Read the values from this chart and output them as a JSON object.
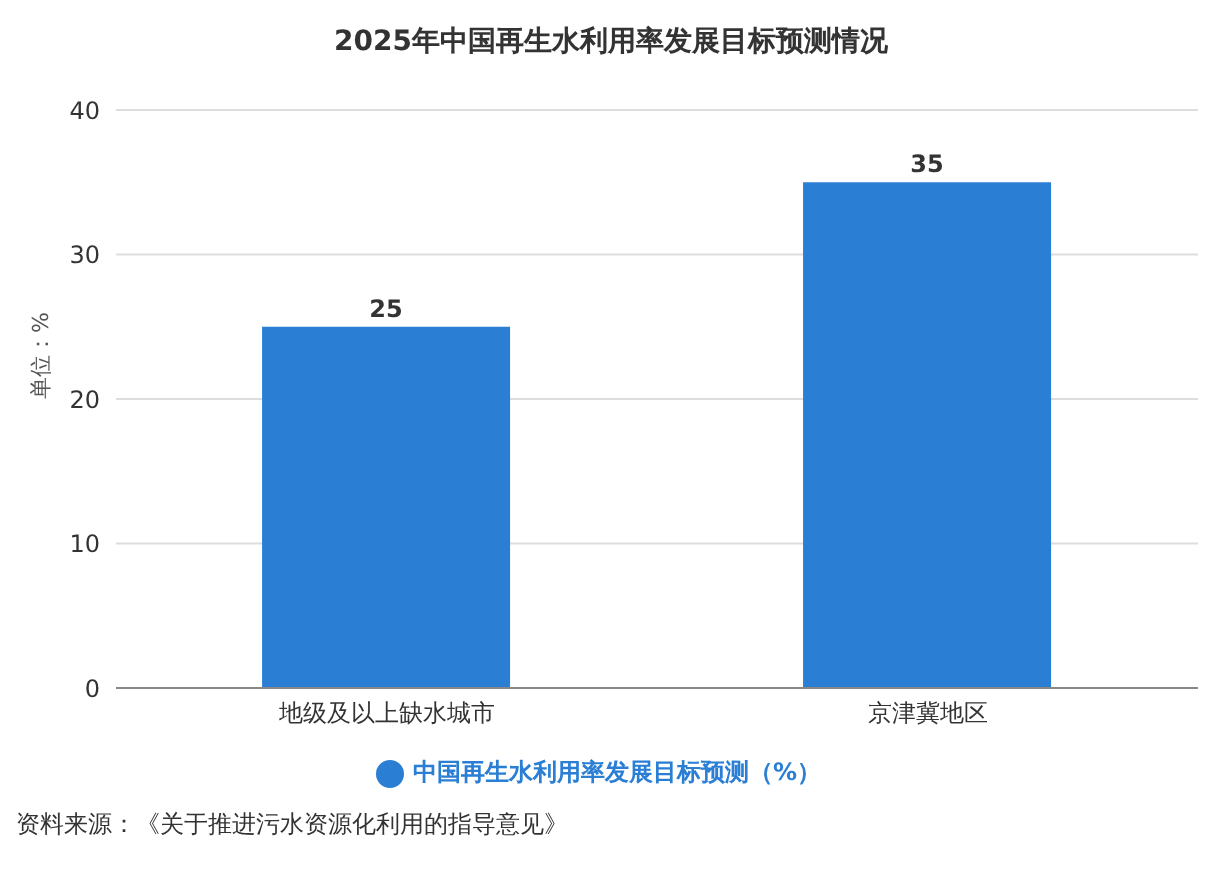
{
  "chart_data": {
    "type": "bar",
    "title": "2025年中国再生水利用率发展目标预测情况",
    "ylabel": "单位：%",
    "categories": [
      "地级及以上缺水城市",
      "京津冀地区"
    ],
    "series": [
      {
        "name": "中国再生水利用率发展目标预测（%）",
        "color": "#2a7fd4",
        "values": [
          25,
          35
        ]
      }
    ],
    "ylim": [
      0,
      40
    ],
    "yticks": [
      0,
      10,
      20,
      30,
      40
    ],
    "grid": "y",
    "legend": "bottom",
    "data_labels": true,
    "annotations": [
      "资料来源：《关于推进污水资源化利用的指导意见》"
    ]
  }
}
